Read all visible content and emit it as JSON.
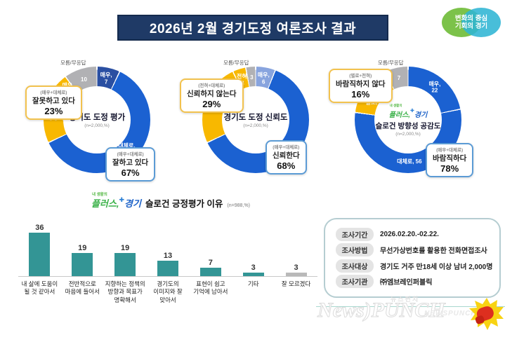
{
  "header": {
    "title": "2026년 2월 경기도정 여론조사 결과"
  },
  "gg_logo": {
    "line1": "변화의 중심",
    "line2": "기회의 경기"
  },
  "slogan_logo": {
    "tagline": "내 생활의",
    "word1": "플러스,",
    "word2": "경기"
  },
  "chart_data": [
    {
      "type": "donut",
      "title": "경기도 도정 평가",
      "n_label": "(n=2,000,%)",
      "outside_label": "모름/무응답",
      "segments": [
        {
          "name": "매우(긍정)",
          "value": 7,
          "color": "#2a4fa2",
          "lines": [
            "매우,",
            "7"
          ]
        },
        {
          "name": "대체로(긍정)",
          "value": 61,
          "color": "#1b61d1",
          "lines": [
            "대체로,",
            "61"
          ]
        },
        {
          "name": "대체로(부정)",
          "value": 18,
          "color": "#f8b800",
          "lines": [
            "18",
            "대체로,"
          ]
        },
        {
          "name": "매우(부정)",
          "value": 4,
          "color": "#f8b800",
          "lines": [
            "매우,",
            "4"
          ]
        },
        {
          "name": "모름/무응답",
          "value": 10,
          "color": "#b1b1b4",
          "lines": [
            "10"
          ]
        }
      ],
      "callouts": {
        "neg": {
          "sub": "(매우+대체로)",
          "label": "잘못하고 있다",
          "pct": "23%"
        },
        "pos": {
          "sub": "(매우+대체로)",
          "label": "잘하고 있다",
          "pct": "67%"
        }
      }
    },
    {
      "type": "donut",
      "title": "경기도 도정 신뢰도",
      "n_label": "(n=2,000,%)",
      "outside_label": "모름/무응답",
      "segments": [
        {
          "name": "매우",
          "value": 6,
          "color": "#88a4de",
          "lines": [
            "매우,",
            "6"
          ]
        },
        {
          "name": "대체로(긍정)",
          "value": 62,
          "color": "#1b61d1",
          "lines": [
            "대체로,",
            "62"
          ]
        },
        {
          "name": "대체로(부정)",
          "value": 25,
          "color": "#f8b800",
          "lines": [
            "25",
            "대체로,"
          ]
        },
        {
          "name": "전혀",
          "value": 4,
          "color": "#f8b800",
          "lines": [
            "전혀,",
            "4"
          ]
        },
        {
          "name": "모름/무응답",
          "value": 3,
          "color": "#b1b1b4",
          "lines": [
            "3"
          ]
        }
      ],
      "callouts": {
        "neg": {
          "sub": "(전혀+대체로)",
          "label": "신뢰하지 않는다",
          "pct": "29%"
        },
        "pos": {
          "sub": "(매우+대체로)",
          "label": "신뢰한다",
          "pct": "68%"
        }
      }
    },
    {
      "type": "donut",
      "title": "슬로건 방향성 공감도",
      "n_label": "(n=2,000,%)",
      "outside_label": "모름/무응답",
      "has_center_logo": true,
      "segments": [
        {
          "name": "매우",
          "value": 22,
          "color": "#1b61d1",
          "lines": [
            "매우,",
            "22"
          ]
        },
        {
          "name": "대체로",
          "value": 56,
          "color": "#1b61d1",
          "lines": [
            "대체로, 56"
          ]
        },
        {
          "name": "별로",
          "value": 12,
          "color": "#f8b800",
          "lines": [
            "12",
            "별로,"
          ]
        },
        {
          "name": "전혀",
          "value": 4,
          "color": "#f8b800",
          "lines": [
            "전혀,",
            "4"
          ]
        },
        {
          "name": "모름/무응답",
          "value": 7,
          "color": "#b1b1b4",
          "lines": [
            "7"
          ]
        }
      ],
      "callouts": {
        "neg": {
          "sub": "(별로+전혀)",
          "label": "바람직하지 않다",
          "pct": "16%"
        },
        "pos": {
          "sub": "(매우+대체로)",
          "label": "바람직하다",
          "pct": "78%"
        }
      }
    },
    {
      "type": "bar",
      "title": "슬로건 긍정평가 이유",
      "n_label": "(n=988,%)",
      "ylim": [
        0,
        40
      ],
      "items": [
        {
          "label_lines": [
            "내 삶에 도움이",
            "될 것 같아서"
          ],
          "value": 36,
          "color": "#339595"
        },
        {
          "label_lines": [
            "전반적으로",
            "마음에 들어서"
          ],
          "value": 19,
          "color": "#339595"
        },
        {
          "label_lines": [
            "지향하는 정책의",
            "방향과 목표가",
            "명확해서"
          ],
          "value": 19,
          "color": "#339595"
        },
        {
          "label_lines": [
            "경기도의",
            "이미지와 잘",
            "맞아서"
          ],
          "value": 13,
          "color": "#339595"
        },
        {
          "label_lines": [
            "표현이 쉽고",
            "기억에 남아서"
          ],
          "value": 7,
          "color": "#339595"
        },
        {
          "label_lines": [
            "기타"
          ],
          "value": 3,
          "color": "#339595"
        },
        {
          "label_lines": [
            "잘 모르겠다"
          ],
          "value": 3,
          "color": "#b9b9b9"
        }
      ]
    }
  ],
  "survey_info": {
    "rows": [
      {
        "label": "조사기간",
        "value": "2026.02.20.-02.22."
      },
      {
        "label": "조사방법",
        "value": "무선가상번호를 활용한 전화면접조사"
      },
      {
        "label": "조사대상",
        "value": "경기도 거주 만18세 이상 남녀 2,000명"
      },
      {
        "label": "조사기관",
        "value": "㈜엠브레인퍼블릭"
      }
    ]
  },
  "watermark": {
    "kor": "뉴스펀치",
    "main": "News)PUNCH",
    "caps": "NEWSPUNCH"
  }
}
